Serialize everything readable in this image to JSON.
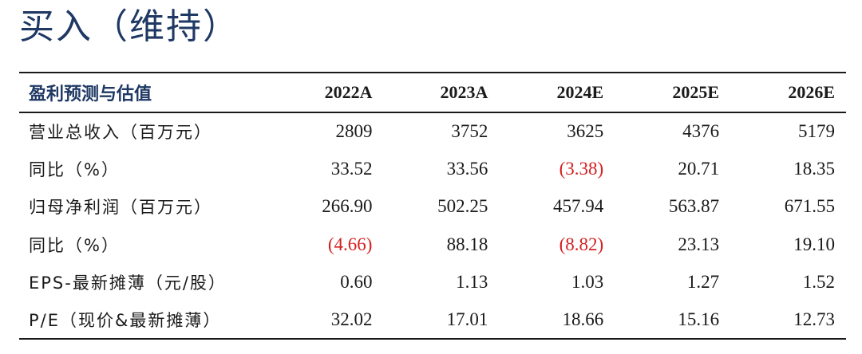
{
  "rating": "买入（维持）",
  "table": {
    "header": [
      "盈利预测与估值",
      "2022A",
      "2023A",
      "2024E",
      "2025E",
      "2026E"
    ],
    "rows": [
      {
        "label": "营业总收入（百万元）",
        "values": [
          "2809",
          "3752",
          "3625",
          "4376",
          "5179"
        ]
      },
      {
        "label": "同比（%）",
        "values": [
          "33.52",
          "33.56",
          "(3.38)",
          "20.71",
          "18.35"
        ]
      },
      {
        "label": "归母净利润（百万元）",
        "values": [
          "266.90",
          "502.25",
          "457.94",
          "563.87",
          "671.55"
        ]
      },
      {
        "label": "同比（%）",
        "values": [
          "(4.66)",
          "88.18",
          "(8.82)",
          "23.13",
          "19.10"
        ]
      },
      {
        "label": "EPS-最新摊薄（元/股）",
        "values": [
          "0.60",
          "1.13",
          "1.03",
          "1.27",
          "1.52"
        ]
      },
      {
        "label": "P/E（现价&最新摊薄）",
        "values": [
          "32.02",
          "17.01",
          "18.66",
          "15.16",
          "12.73"
        ]
      }
    ]
  },
  "colors": {
    "heading": "#1f3864",
    "negative": "#d42020",
    "text": "#1a1a1a"
  }
}
